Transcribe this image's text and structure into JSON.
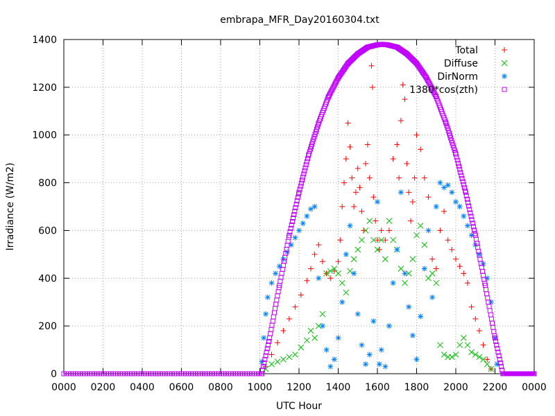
{
  "chart_data": {
    "type": "scatter",
    "title": "embrapa_MFR_Day20160304.txt",
    "xlabel": "UTC Hour",
    "ylabel": "Irradiance (W/m2)",
    "xlim": [
      0,
      2400
    ],
    "ylim": [
      0,
      1400
    ],
    "x_ticks": [
      "0000",
      "0200",
      "0400",
      "0600",
      "0800",
      "1000",
      "1200",
      "1400",
      "1600",
      "1800",
      "2000",
      "2200",
      "0000"
    ],
    "y_ticks": [
      "0",
      "200",
      "400",
      "600",
      "800",
      "1000",
      "1200",
      "1400"
    ],
    "grid": true,
    "legend_position": "top-right",
    "series": [
      {
        "name": "Total",
        "marker": "plus",
        "color": "#ff0000",
        "points": [
          [
            1030,
            30
          ],
          [
            1060,
            80
          ],
          [
            1090,
            130
          ],
          [
            1120,
            180
          ],
          [
            1150,
            230
          ],
          [
            1180,
            280
          ],
          [
            1210,
            330
          ],
          [
            1240,
            390
          ],
          [
            1260,
            440
          ],
          [
            1280,
            500
          ],
          [
            1300,
            540
          ],
          [
            1320,
            470
          ],
          [
            1340,
            420
          ],
          [
            1360,
            400
          ],
          [
            1380,
            430
          ],
          [
            1400,
            470
          ],
          [
            1410,
            560
          ],
          [
            1420,
            700
          ],
          [
            1430,
            800
          ],
          [
            1440,
            900
          ],
          [
            1450,
            1050
          ],
          [
            1460,
            950
          ],
          [
            1470,
            820
          ],
          [
            1480,
            700
          ],
          [
            1490,
            760
          ],
          [
            1500,
            860
          ],
          [
            1510,
            780
          ],
          [
            1520,
            680
          ],
          [
            1530,
            600
          ],
          [
            1540,
            880
          ],
          [
            1550,
            960
          ],
          [
            1560,
            820
          ],
          [
            1570,
            1290
          ],
          [
            1575,
            1200
          ],
          [
            1580,
            740
          ],
          [
            1590,
            640
          ],
          [
            1600,
            560
          ],
          [
            1610,
            520
          ],
          [
            1620,
            600
          ],
          [
            1640,
            560
          ],
          [
            1660,
            600
          ],
          [
            1680,
            900
          ],
          [
            1700,
            960
          ],
          [
            1710,
            820
          ],
          [
            1720,
            1060
          ],
          [
            1730,
            1210
          ],
          [
            1740,
            1150
          ],
          [
            1750,
            880
          ],
          [
            1760,
            760
          ],
          [
            1770,
            640
          ],
          [
            1780,
            720
          ],
          [
            1790,
            820
          ],
          [
            1800,
            1000
          ],
          [
            1820,
            940
          ],
          [
            1840,
            820
          ],
          [
            1860,
            740
          ],
          [
            1880,
            480
          ],
          [
            1900,
            440
          ],
          [
            1920,
            600
          ],
          [
            1940,
            680
          ],
          [
            1960,
            560
          ],
          [
            1980,
            520
          ],
          [
            2000,
            480
          ],
          [
            2020,
            450
          ],
          [
            2040,
            420
          ],
          [
            2060,
            380
          ],
          [
            2080,
            280
          ],
          [
            2100,
            230
          ],
          [
            2120,
            180
          ],
          [
            2140,
            120
          ],
          [
            2160,
            60
          ],
          [
            2180,
            20
          ]
        ]
      },
      {
        "name": "Diffuse",
        "marker": "cross",
        "color": "#00c000",
        "points": [
          [
            1030,
            20
          ],
          [
            1060,
            40
          ],
          [
            1090,
            50
          ],
          [
            1120,
            60
          ],
          [
            1150,
            70
          ],
          [
            1180,
            80
          ],
          [
            1210,
            110
          ],
          [
            1240,
            140
          ],
          [
            1260,
            180
          ],
          [
            1280,
            150
          ],
          [
            1300,
            200
          ],
          [
            1320,
            250
          ],
          [
            1340,
            420
          ],
          [
            1360,
            430
          ],
          [
            1380,
            440
          ],
          [
            1400,
            420
          ],
          [
            1420,
            380
          ],
          [
            1440,
            340
          ],
          [
            1460,
            430
          ],
          [
            1480,
            480
          ],
          [
            1500,
            520
          ],
          [
            1520,
            560
          ],
          [
            1540,
            600
          ],
          [
            1560,
            640
          ],
          [
            1580,
            560
          ],
          [
            1600,
            520
          ],
          [
            1620,
            560
          ],
          [
            1640,
            480
          ],
          [
            1660,
            640
          ],
          [
            1680,
            560
          ],
          [
            1700,
            520
          ],
          [
            1720,
            440
          ],
          [
            1740,
            380
          ],
          [
            1760,
            420
          ],
          [
            1780,
            480
          ],
          [
            1800,
            580
          ],
          [
            1820,
            620
          ],
          [
            1840,
            540
          ],
          [
            1860,
            400
          ],
          [
            1880,
            420
          ],
          [
            1900,
            380
          ],
          [
            1920,
            120
          ],
          [
            1940,
            80
          ],
          [
            1960,
            70
          ],
          [
            1980,
            70
          ],
          [
            2000,
            80
          ],
          [
            2020,
            120
          ],
          [
            2040,
            150
          ],
          [
            2060,
            120
          ],
          [
            2080,
            90
          ],
          [
            2100,
            80
          ],
          [
            2120,
            70
          ],
          [
            2140,
            60
          ],
          [
            2160,
            40
          ],
          [
            2180,
            20
          ]
        ]
      },
      {
        "name": "DirNorm",
        "marker": "star",
        "color": "#0080ff",
        "points": [
          [
            1010,
            50
          ],
          [
            1020,
            150
          ],
          [
            1030,
            250
          ],
          [
            1040,
            320
          ],
          [
            1060,
            380
          ],
          [
            1080,
            420
          ],
          [
            1100,
            450
          ],
          [
            1120,
            480
          ],
          [
            1140,
            510
          ],
          [
            1160,
            540
          ],
          [
            1180,
            570
          ],
          [
            1200,
            600
          ],
          [
            1220,
            630
          ],
          [
            1240,
            660
          ],
          [
            1260,
            690
          ],
          [
            1280,
            700
          ],
          [
            1300,
            400
          ],
          [
            1320,
            200
          ],
          [
            1340,
            100
          ],
          [
            1360,
            30
          ],
          [
            1380,
            60
          ],
          [
            1400,
            150
          ],
          [
            1420,
            300
          ],
          [
            1440,
            500
          ],
          [
            1460,
            620
          ],
          [
            1480,
            420
          ],
          [
            1500,
            250
          ],
          [
            1520,
            120
          ],
          [
            1540,
            40
          ],
          [
            1560,
            80
          ],
          [
            1580,
            220
          ],
          [
            1600,
            720
          ],
          [
            1610,
            40
          ],
          [
            1620,
            100
          ],
          [
            1640,
            30
          ],
          [
            1660,
            200
          ],
          [
            1680,
            380
          ],
          [
            1700,
            520
          ],
          [
            1720,
            760
          ],
          [
            1740,
            420
          ],
          [
            1760,
            280
          ],
          [
            1780,
            160
          ],
          [
            1800,
            60
          ],
          [
            1820,
            240
          ],
          [
            1840,
            440
          ],
          [
            1860,
            600
          ],
          [
            1880,
            320
          ],
          [
            1900,
            700
          ],
          [
            1920,
            800
          ],
          [
            1940,
            780
          ],
          [
            1960,
            790
          ],
          [
            1980,
            760
          ],
          [
            2000,
            720
          ],
          [
            2020,
            700
          ],
          [
            2040,
            660
          ],
          [
            2060,
            620
          ],
          [
            2080,
            580
          ],
          [
            2100,
            540
          ],
          [
            2120,
            500
          ],
          [
            2140,
            460
          ],
          [
            2160,
            400
          ],
          [
            2180,
            300
          ],
          [
            2200,
            150
          ],
          [
            2210,
            40
          ]
        ]
      },
      {
        "name": "1380*cos(zth)",
        "marker": "square",
        "color": "#c000ff",
        "points": [
          [
            0,
            0
          ],
          [
            1010,
            0
          ],
          [
            1050,
            150
          ],
          [
            1100,
            370
          ],
          [
            1150,
            580
          ],
          [
            1200,
            760
          ],
          [
            1250,
            920
          ],
          [
            1300,
            1050
          ],
          [
            1350,
            1160
          ],
          [
            1400,
            1240
          ],
          [
            1450,
            1300
          ],
          [
            1500,
            1340
          ],
          [
            1550,
            1368
          ],
          [
            1600,
            1378
          ],
          [
            1625,
            1380
          ],
          [
            1650,
            1378
          ],
          [
            1700,
            1368
          ],
          [
            1750,
            1340
          ],
          [
            1800,
            1300
          ],
          [
            1850,
            1240
          ],
          [
            1900,
            1160
          ],
          [
            1950,
            1050
          ],
          [
            2000,
            920
          ],
          [
            2050,
            760
          ],
          [
            2100,
            580
          ],
          [
            2150,
            370
          ],
          [
            2200,
            150
          ],
          [
            2240,
            0
          ],
          [
            2400,
            0
          ]
        ]
      }
    ]
  }
}
